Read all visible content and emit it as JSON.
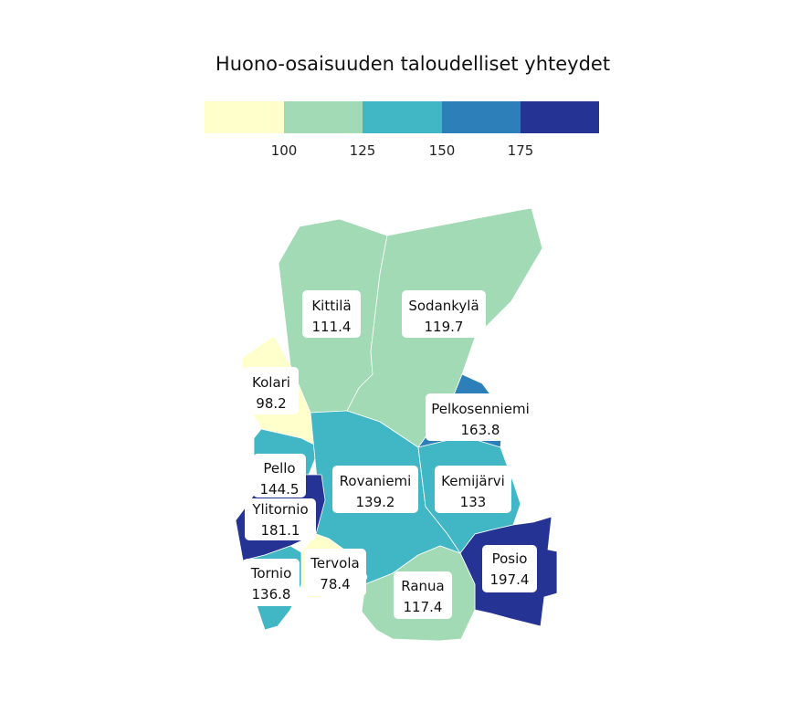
{
  "title": "Huono-osaisuuden taloudelliset yhteydet",
  "legend": {
    "bins": [
      "#ffffcc",
      "#a1dab4",
      "#41b6c4",
      "#2c7fb8",
      "#253494"
    ],
    "ticks": [
      "100",
      "125",
      "150",
      "175"
    ]
  },
  "regions": [
    {
      "name": "Kittilä",
      "value": "111.4",
      "color": "#a1dab4"
    },
    {
      "name": "Sodankylä",
      "value": "119.7",
      "color": "#a1dab4"
    },
    {
      "name": "Kolari",
      "value": "98.2",
      "color": "#ffffcc"
    },
    {
      "name": "Pelkosenniemi",
      "value": "163.8",
      "color": "#2c7fb8"
    },
    {
      "name": "Pello",
      "value": "144.5",
      "color": "#41b6c4"
    },
    {
      "name": "Rovaniemi",
      "value": "139.2",
      "color": "#41b6c4"
    },
    {
      "name": "Kemijärvi",
      "value": "133",
      "color": "#41b6c4"
    },
    {
      "name": "Ylitornio",
      "value": "181.1",
      "color": "#253494"
    },
    {
      "name": "Posio",
      "value": "197.4",
      "color": "#253494"
    },
    {
      "name": "Tervola",
      "value": "78.4",
      "color": "#ffffcc"
    },
    {
      "name": "Tornio",
      "value": "136.8",
      "color": "#41b6c4"
    },
    {
      "name": "Ranua",
      "value": "117.4",
      "color": "#a1dab4"
    }
  ]
}
